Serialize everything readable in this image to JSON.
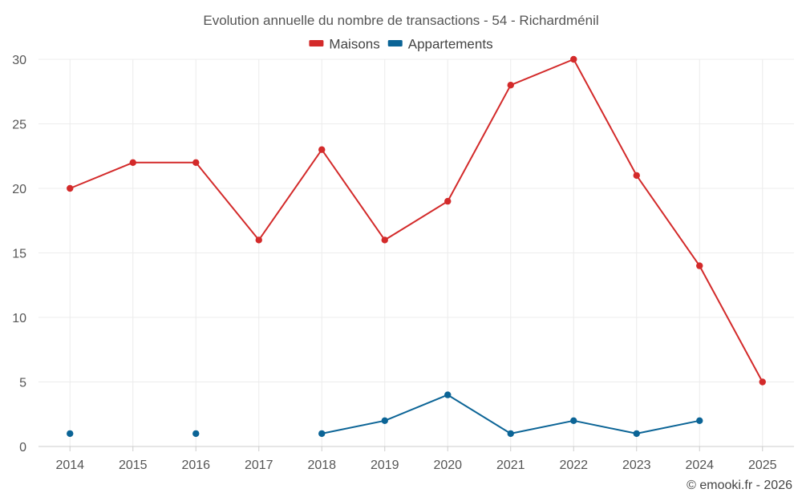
{
  "chart_data": {
    "type": "line",
    "title": "Evolution annuelle du nombre de transactions - 54 - Richardménil",
    "categories": [
      "2014",
      "2015",
      "2016",
      "2017",
      "2018",
      "2019",
      "2020",
      "2021",
      "2022",
      "2023",
      "2024",
      "2025"
    ],
    "ylim": [
      0,
      30
    ],
    "yticks": [
      "0",
      "5",
      "10",
      "15",
      "20",
      "25",
      "30"
    ],
    "grid": true,
    "legend_position": "top-center",
    "series": [
      {
        "name": "Maisons",
        "color": "#d32a2a",
        "values": [
          20,
          22,
          22,
          16,
          23,
          16,
          19,
          28,
          30,
          21,
          14,
          5
        ]
      },
      {
        "name": "Appartements",
        "color": "#0b6496",
        "values": [
          1,
          null,
          1,
          null,
          1,
          2,
          4,
          1,
          2,
          1,
          2,
          null
        ]
      }
    ]
  },
  "footer": {
    "credit": "© emooki.fr - 2026"
  }
}
